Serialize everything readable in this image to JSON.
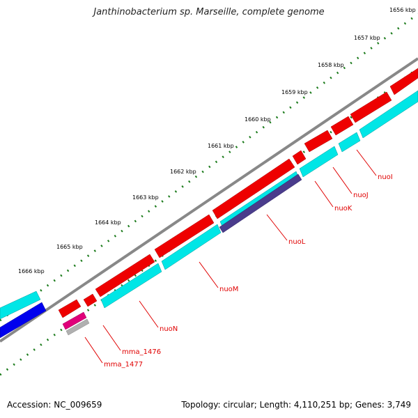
{
  "title": "Janthinobacterium sp. Marseille, complete genome",
  "footer": {
    "accession": "Accession: NC_009659",
    "summary": "Topology: circular; Length: 4,110,251 bp; Genes: 3,749"
  },
  "colors": {
    "backbone": "#888888",
    "forward_gene": "#ee0000",
    "reverse_gene": "#00e6e6",
    "reverse_gene_dark": "#0000ee",
    "purple_gene": "#4a3c8c",
    "magenta_gene": "#e0007a",
    "grey_gene": "#b0b0b0",
    "ticks": "#1a7a1a",
    "label": "#e00000"
  },
  "scale": {
    "labels": [
      "1656 kbp",
      "1657 kbp",
      "1658 kbp",
      "1659 kbp",
      "1660 kbp",
      "1661 kbp",
      "1662 kbp",
      "1663 kbp",
      "1664 kbp",
      "1665 kbp",
      "1666 kbp"
    ]
  },
  "gene_labels": [
    "nuoI",
    "nuoJ",
    "nuoK",
    "nuoL",
    "nuoM",
    "nuoN",
    "mma_1476",
    "mma_1477"
  ]
}
